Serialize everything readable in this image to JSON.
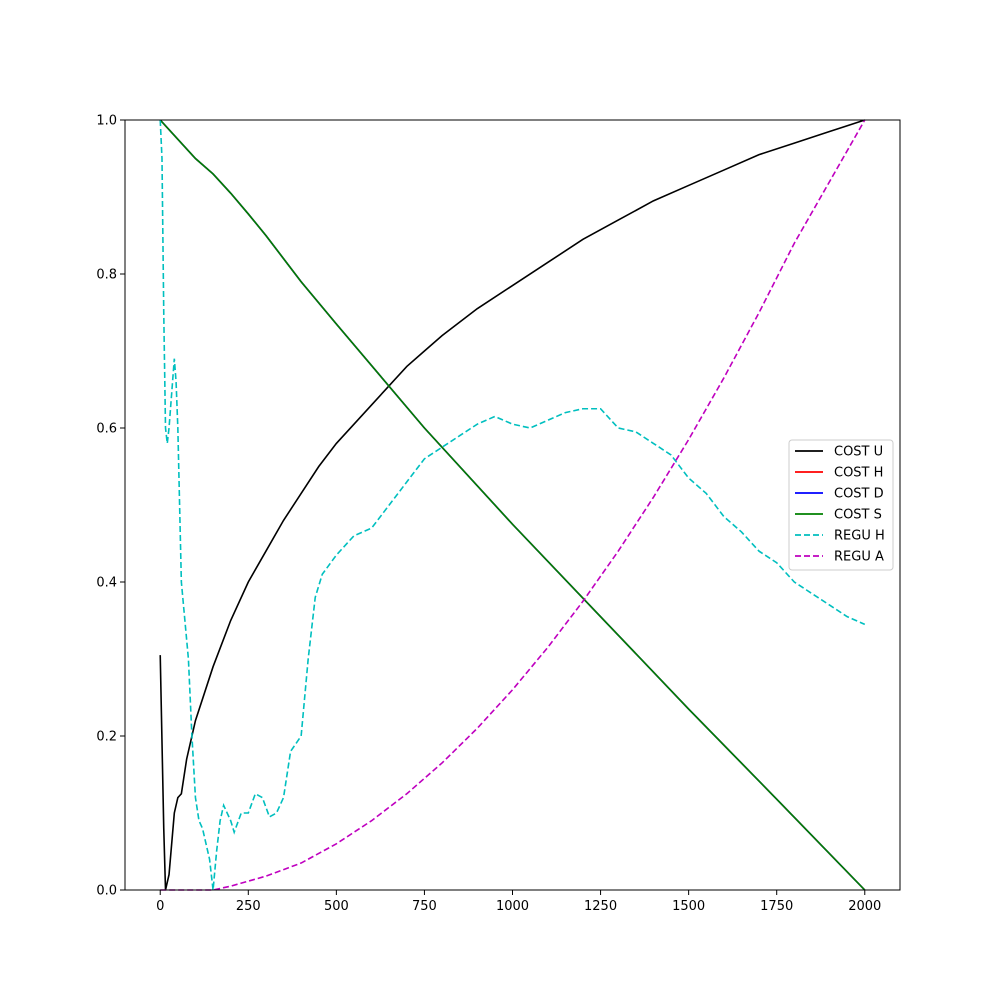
{
  "chart_data": {
    "type": "line",
    "title": "",
    "xlabel": "",
    "ylabel": "",
    "xlim": [
      -100,
      2100
    ],
    "ylim": [
      0.0,
      1.0
    ],
    "x_ticks": [
      0,
      250,
      500,
      750,
      1000,
      1250,
      1500,
      1750,
      2000
    ],
    "y_ticks": [
      0.0,
      0.2,
      0.4,
      0.6,
      0.8,
      1.0
    ],
    "x_tick_labels": [
      "0",
      "250",
      "500",
      "750",
      "1000",
      "1250",
      "1500",
      "1750",
      "2000"
    ],
    "y_tick_labels": [
      "0.0",
      "0.2",
      "0.4",
      "0.6",
      "0.8",
      "1.0"
    ],
    "grid": false,
    "legend_position": "center-right",
    "series": [
      {
        "name": "COST U",
        "color": "#000000",
        "dash": "solid",
        "points": [
          [
            0,
            0.305
          ],
          [
            10,
            0.08
          ],
          [
            15,
            0.0
          ],
          [
            25,
            0.02
          ],
          [
            40,
            0.1
          ],
          [
            50,
            0.12
          ],
          [
            60,
            0.125
          ],
          [
            75,
            0.17
          ],
          [
            100,
            0.22
          ],
          [
            150,
            0.29
          ],
          [
            200,
            0.35
          ],
          [
            250,
            0.4
          ],
          [
            300,
            0.44
          ],
          [
            350,
            0.48
          ],
          [
            400,
            0.515
          ],
          [
            450,
            0.55
          ],
          [
            500,
            0.58
          ],
          [
            550,
            0.605
          ],
          [
            600,
            0.63
          ],
          [
            650,
            0.655
          ],
          [
            700,
            0.68
          ],
          [
            750,
            0.7
          ],
          [
            800,
            0.72
          ],
          [
            900,
            0.755
          ],
          [
            1000,
            0.785
          ],
          [
            1100,
            0.815
          ],
          [
            1200,
            0.845
          ],
          [
            1300,
            0.87
          ],
          [
            1400,
            0.895
          ],
          [
            1500,
            0.915
          ],
          [
            1600,
            0.935
          ],
          [
            1700,
            0.955
          ],
          [
            1800,
            0.97
          ],
          [
            1900,
            0.985
          ],
          [
            2000,
            1.0
          ]
        ]
      },
      {
        "name": "COST H",
        "color": "#ff0000",
        "dash": "solid",
        "points": [
          [
            0,
            1.0
          ],
          [
            100,
            0.95
          ],
          [
            150,
            0.93
          ],
          [
            200,
            0.905
          ],
          [
            250,
            0.878
          ],
          [
            300,
            0.85
          ],
          [
            350,
            0.82
          ],
          [
            400,
            0.79
          ],
          [
            500,
            0.735
          ],
          [
            750,
            0.6
          ],
          [
            1000,
            0.475
          ],
          [
            1250,
            0.355
          ],
          [
            1500,
            0.235
          ],
          [
            1750,
            0.118
          ],
          [
            2000,
            0.0
          ]
        ]
      },
      {
        "name": "COST D",
        "color": "#0000ff",
        "dash": "solid",
        "points": [
          [
            0,
            1.0
          ],
          [
            100,
            0.95
          ],
          [
            150,
            0.93
          ],
          [
            200,
            0.905
          ],
          [
            250,
            0.878
          ],
          [
            300,
            0.85
          ],
          [
            350,
            0.82
          ],
          [
            400,
            0.79
          ],
          [
            500,
            0.735
          ],
          [
            750,
            0.6
          ],
          [
            1000,
            0.475
          ],
          [
            1250,
            0.355
          ],
          [
            1500,
            0.235
          ],
          [
            1750,
            0.118
          ],
          [
            2000,
            0.0
          ]
        ]
      },
      {
        "name": "COST S",
        "color": "#008000",
        "dash": "solid",
        "points": [
          [
            0,
            1.0
          ],
          [
            100,
            0.95
          ],
          [
            150,
            0.93
          ],
          [
            200,
            0.905
          ],
          [
            250,
            0.878
          ],
          [
            300,
            0.85
          ],
          [
            350,
            0.82
          ],
          [
            400,
            0.79
          ],
          [
            500,
            0.735
          ],
          [
            750,
            0.6
          ],
          [
            1000,
            0.475
          ],
          [
            1250,
            0.355
          ],
          [
            1500,
            0.235
          ],
          [
            1750,
            0.118
          ],
          [
            2000,
            0.0
          ]
        ]
      },
      {
        "name": "REGU H",
        "color": "#00bfbf",
        "dash": "dashed",
        "points": [
          [
            0,
            1.0
          ],
          [
            5,
            0.95
          ],
          [
            10,
            0.75
          ],
          [
            15,
            0.6
          ],
          [
            20,
            0.58
          ],
          [
            25,
            0.6
          ],
          [
            35,
            0.66
          ],
          [
            40,
            0.69
          ],
          [
            45,
            0.66
          ],
          [
            50,
            0.6
          ],
          [
            55,
            0.5
          ],
          [
            60,
            0.4
          ],
          [
            70,
            0.35
          ],
          [
            80,
            0.3
          ],
          [
            90,
            0.2
          ],
          [
            100,
            0.12
          ],
          [
            110,
            0.09
          ],
          [
            120,
            0.08
          ],
          [
            130,
            0.06
          ],
          [
            140,
            0.04
          ],
          [
            150,
            0.0
          ],
          [
            160,
            0.05
          ],
          [
            170,
            0.09
          ],
          [
            180,
            0.11
          ],
          [
            200,
            0.09
          ],
          [
            210,
            0.075
          ],
          [
            230,
            0.1
          ],
          [
            250,
            0.1
          ],
          [
            270,
            0.125
          ],
          [
            290,
            0.12
          ],
          [
            310,
            0.095
          ],
          [
            330,
            0.1
          ],
          [
            350,
            0.12
          ],
          [
            370,
            0.18
          ],
          [
            400,
            0.2
          ],
          [
            420,
            0.3
          ],
          [
            440,
            0.38
          ],
          [
            460,
            0.41
          ],
          [
            500,
            0.435
          ],
          [
            550,
            0.46
          ],
          [
            600,
            0.47
          ],
          [
            650,
            0.5
          ],
          [
            700,
            0.53
          ],
          [
            750,
            0.56
          ],
          [
            800,
            0.575
          ],
          [
            850,
            0.59
          ],
          [
            900,
            0.605
          ],
          [
            950,
            0.615
          ],
          [
            1000,
            0.605
          ],
          [
            1050,
            0.6
          ],
          [
            1100,
            0.61
          ],
          [
            1150,
            0.62
          ],
          [
            1200,
            0.625
          ],
          [
            1250,
            0.625
          ],
          [
            1300,
            0.6
          ],
          [
            1350,
            0.595
          ],
          [
            1400,
            0.58
          ],
          [
            1450,
            0.565
          ],
          [
            1500,
            0.535
          ],
          [
            1550,
            0.515
          ],
          [
            1600,
            0.485
          ],
          [
            1650,
            0.465
          ],
          [
            1700,
            0.44
          ],
          [
            1750,
            0.425
          ],
          [
            1800,
            0.4
          ],
          [
            1850,
            0.385
          ],
          [
            1900,
            0.37
          ],
          [
            1950,
            0.355
          ],
          [
            2000,
            0.345
          ]
        ]
      },
      {
        "name": "REGU A",
        "color": "#bf00bf",
        "dash": "dashed",
        "points": [
          [
            0,
            0.0
          ],
          [
            100,
            0.0
          ],
          [
            150,
            0.0
          ],
          [
            200,
            0.005
          ],
          [
            300,
            0.018
          ],
          [
            400,
            0.035
          ],
          [
            500,
            0.06
          ],
          [
            600,
            0.09
          ],
          [
            700,
            0.125
          ],
          [
            800,
            0.165
          ],
          [
            900,
            0.21
          ],
          [
            1000,
            0.26
          ],
          [
            1100,
            0.315
          ],
          [
            1200,
            0.375
          ],
          [
            1300,
            0.44
          ],
          [
            1400,
            0.51
          ],
          [
            1500,
            0.585
          ],
          [
            1600,
            0.665
          ],
          [
            1700,
            0.75
          ],
          [
            1800,
            0.84
          ],
          [
            1900,
            0.92
          ],
          [
            2000,
            1.0
          ]
        ]
      }
    ]
  }
}
